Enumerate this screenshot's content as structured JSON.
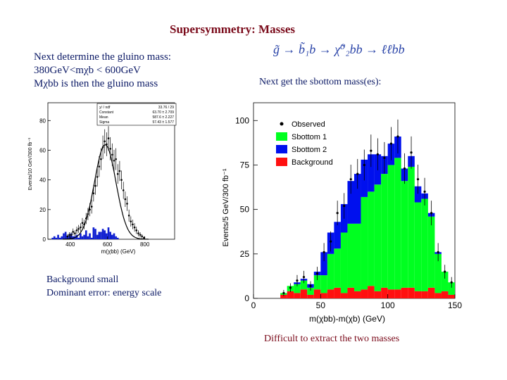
{
  "slide": {
    "title": "Supersymmetry: Masses",
    "left_lines": [
      "Next determine the gluino mass:",
      "380GeV<mχb < 600GeV",
      "Mχbb is then the gluino mass"
    ],
    "decay_chain": "g̃ → b̃₁b → χ̃⁰₂bb → ℓℓbb",
    "right_note": "Next get the sbottom mass(es):",
    "bottom_left_lines": [
      "Background small",
      "Dominant error: energy scale"
    ],
    "bottom_right": "Difficult to extract the two masses"
  },
  "colors": {
    "title": "#7a0a1a",
    "body_text": "#0c1a66",
    "sbottom1": "#00ff20",
    "sbottom2": "#0010ee",
    "background": "#ff1010"
  },
  "chart_data": [
    {
      "type": "bar",
      "title": "",
      "xlabel": "m(χbb) (GeV)",
      "ylabel": "Events/10 GeV/300 fb⁻¹",
      "xlim": [
        280,
        960
      ],
      "ylim": [
        0,
        92
      ],
      "x_ticks": [
        400,
        600,
        800
      ],
      "y_ticks": [
        0,
        20,
        40,
        60,
        80
      ],
      "stats_box": {
        "rows": [
          [
            "χ² / ndf",
            "33.76 / 29"
          ],
          [
            "Constant",
            "63.70 ± 2.709"
          ],
          [
            "Mean",
            "587.6 ± 2.227"
          ],
          [
            "Sigma",
            "57.43 ± 1.577"
          ]
        ]
      },
      "bin_width": 10,
      "observed": {
        "x": [
          380,
          390,
          400,
          410,
          420,
          430,
          440,
          450,
          460,
          470,
          480,
          490,
          500,
          510,
          520,
          530,
          540,
          550,
          560,
          570,
          580,
          590,
          600,
          610,
          620,
          630,
          640,
          650,
          660,
          670,
          680,
          690,
          700,
          710,
          720,
          730,
          740,
          750,
          760,
          770,
          780,
          790
        ],
        "y": [
          2,
          3,
          3,
          5,
          4,
          6,
          7,
          8,
          11,
          10,
          14,
          17,
          20,
          22,
          31,
          36,
          42,
          49,
          54,
          62,
          66,
          64,
          68,
          61,
          57,
          53,
          54,
          44,
          46,
          40,
          33,
          27,
          24,
          16,
          12,
          10,
          8,
          6,
          4,
          3,
          2,
          1
        ]
      },
      "background": {
        "x": [
          300,
          310,
          320,
          330,
          340,
          350,
          360,
          370,
          380,
          390,
          400,
          410,
          420,
          430,
          440,
          450,
          460,
          470,
          480,
          490,
          500,
          510,
          520,
          530,
          540,
          550,
          560,
          570,
          580,
          590,
          600,
          610,
          620,
          630,
          640,
          650
        ],
        "y": [
          1,
          2,
          1,
          3,
          1,
          2,
          4,
          5,
          2,
          3,
          4,
          2,
          2,
          3,
          1,
          4,
          2,
          3,
          6,
          2,
          4,
          1,
          8,
          7,
          3,
          5,
          5,
          7,
          6,
          4,
          8,
          5,
          3,
          4,
          2,
          1
        ]
      },
      "gaussian_fit": {
        "constant": 63.7,
        "mean": 587.6,
        "sigma": 57.43
      }
    },
    {
      "type": "bar",
      "title": "",
      "xlabel": "m(χbb)-m(χb) (GeV)",
      "ylabel": "Events/5 GeV/300 fb⁻¹",
      "xlim": [
        0,
        150
      ],
      "ylim": [
        0,
        110
      ],
      "x_ticks": [
        0,
        50,
        100,
        150
      ],
      "y_ticks": [
        0,
        25,
        50,
        75,
        100
      ],
      "legend": [
        "Observed",
        "Sbottom 1",
        "Sbottom 2",
        "Background"
      ],
      "legend_position": "top-left",
      "bin_width": 5,
      "categories": [
        20,
        25,
        30,
        35,
        40,
        45,
        50,
        55,
        60,
        65,
        70,
        75,
        80,
        85,
        90,
        95,
        100,
        105,
        110,
        115,
        120,
        125,
        130,
        135,
        140,
        145
      ],
      "series": [
        {
          "name": "Background",
          "values": [
            2,
            4,
            3,
            5,
            2,
            5,
            3,
            5,
            6,
            3,
            6,
            4,
            5,
            7,
            4,
            6,
            5,
            5,
            6,
            6,
            4,
            4,
            6,
            3,
            4,
            2
          ]
        },
        {
          "name": "Sbottom 1",
          "values": [
            1,
            3,
            5,
            5,
            4,
            8,
            10,
            20,
            22,
            34,
            36,
            38,
            52,
            53,
            60,
            64,
            70,
            74,
            60,
            68,
            50,
            52,
            40,
            22,
            11,
            7
          ]
        },
        {
          "name": "Sbottom 2",
          "values": [
            0,
            0,
            1,
            1,
            2,
            2,
            13,
            12,
            15,
            16,
            24,
            28,
            21,
            21,
            17,
            10,
            12,
            12,
            7,
            6,
            9,
            3,
            2,
            1,
            0,
            0
          ]
        }
      ],
      "observed": {
        "x": [
          20,
          25,
          30,
          35,
          40,
          45,
          50,
          55,
          60,
          65,
          70,
          75,
          80,
          85,
          90,
          95,
          100,
          105,
          110,
          115,
          120,
          125,
          130,
          135,
          140,
          145
        ],
        "y": [
          3,
          6,
          10,
          12,
          7,
          14,
          26,
          32,
          48,
          52,
          67,
          70,
          75,
          83,
          81,
          79,
          87,
          91,
          73,
          82,
          67,
          60,
          48,
          26,
          15,
          9
        ]
      }
    }
  ]
}
